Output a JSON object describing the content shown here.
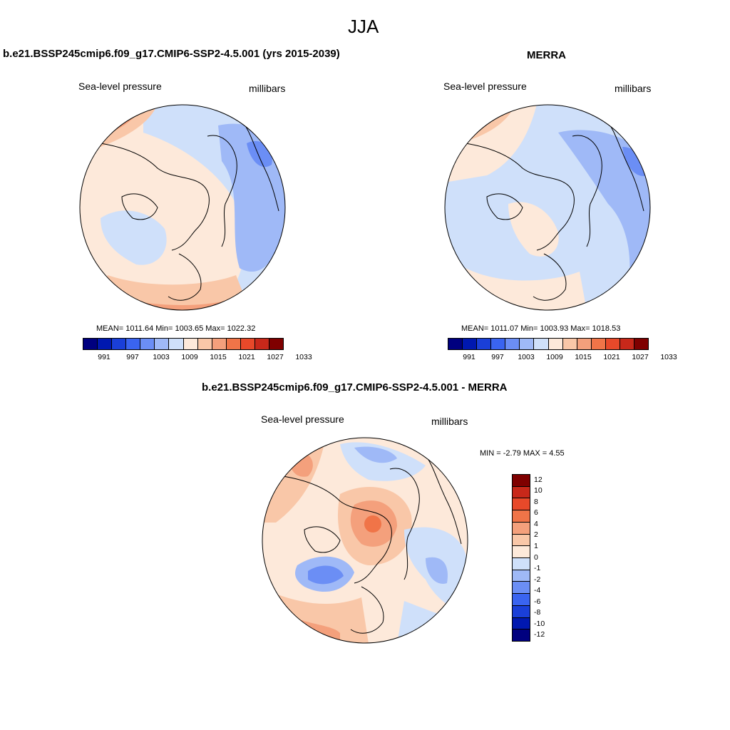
{
  "title": "JJA",
  "panel_model": {
    "header": "b.e21.BSSP245cmip6.f09_g17.CMIP6-SSP2-4.5.001 (yrs 2015-2039)",
    "left_label": "Sea-level pressure",
    "right_label": "millibars",
    "stats": "MEAN= 1011.64  Min= 1003.65  Max= 1022.32"
  },
  "panel_obs": {
    "header": "MERRA",
    "left_label": "Sea-level pressure",
    "right_label": "millibars",
    "stats": "MEAN= 1011.07  Min= 1003.93  Max= 1018.53"
  },
  "panel_diff": {
    "header": "b.e21.BSSP245cmip6.f09_g17.CMIP6-SSP2-4.5.001 - MERRA",
    "left_label": "Sea-level pressure",
    "right_label": "millibars",
    "stats": "MIN =  -2.79 MAX =   4.55"
  },
  "colorbar_abs": {
    "colors": [
      "#00007f",
      "#0018b0",
      "#1a3fd8",
      "#3a64f0",
      "#6b8ef5",
      "#9fb9f7",
      "#cfe0fa",
      "#fde9da",
      "#f9c7a8",
      "#f4a07c",
      "#f07448",
      "#e8492a",
      "#c8281a",
      "#7f0000"
    ],
    "ticks": [
      "991",
      "997",
      "1003",
      "1009",
      "1015",
      "1021",
      "1027",
      "1033"
    ]
  },
  "colorbar_diff": {
    "colors": [
      "#00007f",
      "#0018b0",
      "#1a3fd8",
      "#3a64f0",
      "#6b8ef5",
      "#9fb9f7",
      "#cfe0fa",
      "#fde9da",
      "#f9c7a8",
      "#f4a07c",
      "#f07448",
      "#e8492a",
      "#c8281a",
      "#7f0000"
    ],
    "ticks": [
      "12",
      "10",
      "8",
      "6",
      "4",
      "2",
      "1",
      "0",
      "-1",
      "-2",
      "-4",
      "-6",
      "-8",
      "-10",
      "-12"
    ]
  }
}
